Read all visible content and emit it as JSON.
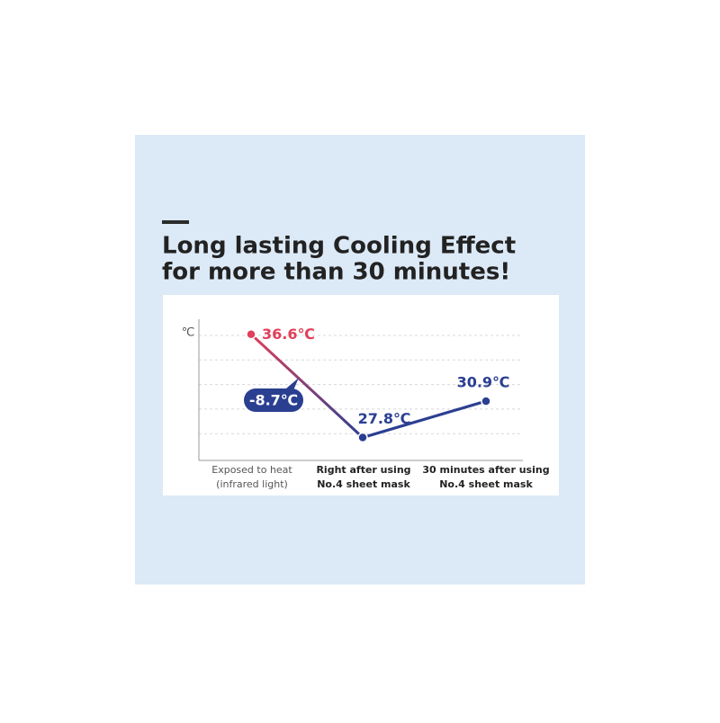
{
  "chart_data": {
    "type": "line",
    "title": [
      "Long lasting Cooling Effect",
      "for more than 30 minutes!"
    ],
    "y_axis_label": "℃",
    "categories": [
      [
        "Exposed to heat",
        "(infrared light)"
      ],
      [
        "Right after using",
        "No.4 sheet mask"
      ],
      [
        "30 minutes after using",
        "No.4 sheet mask"
      ]
    ],
    "series": [
      {
        "color": "#2b3f91",
        "values": [
          36.6,
          27.8,
          30.9
        ],
        "value_labels": [
          "36.6℃",
          "27.8℃",
          "30.9℃"
        ]
      }
    ],
    "point_colors": [
      "#e0405a",
      "#2b3f91",
      "#2b3f91"
    ],
    "annotation": "-8.7℃",
    "ylim": [
      26,
      37.5
    ],
    "grid": true
  }
}
